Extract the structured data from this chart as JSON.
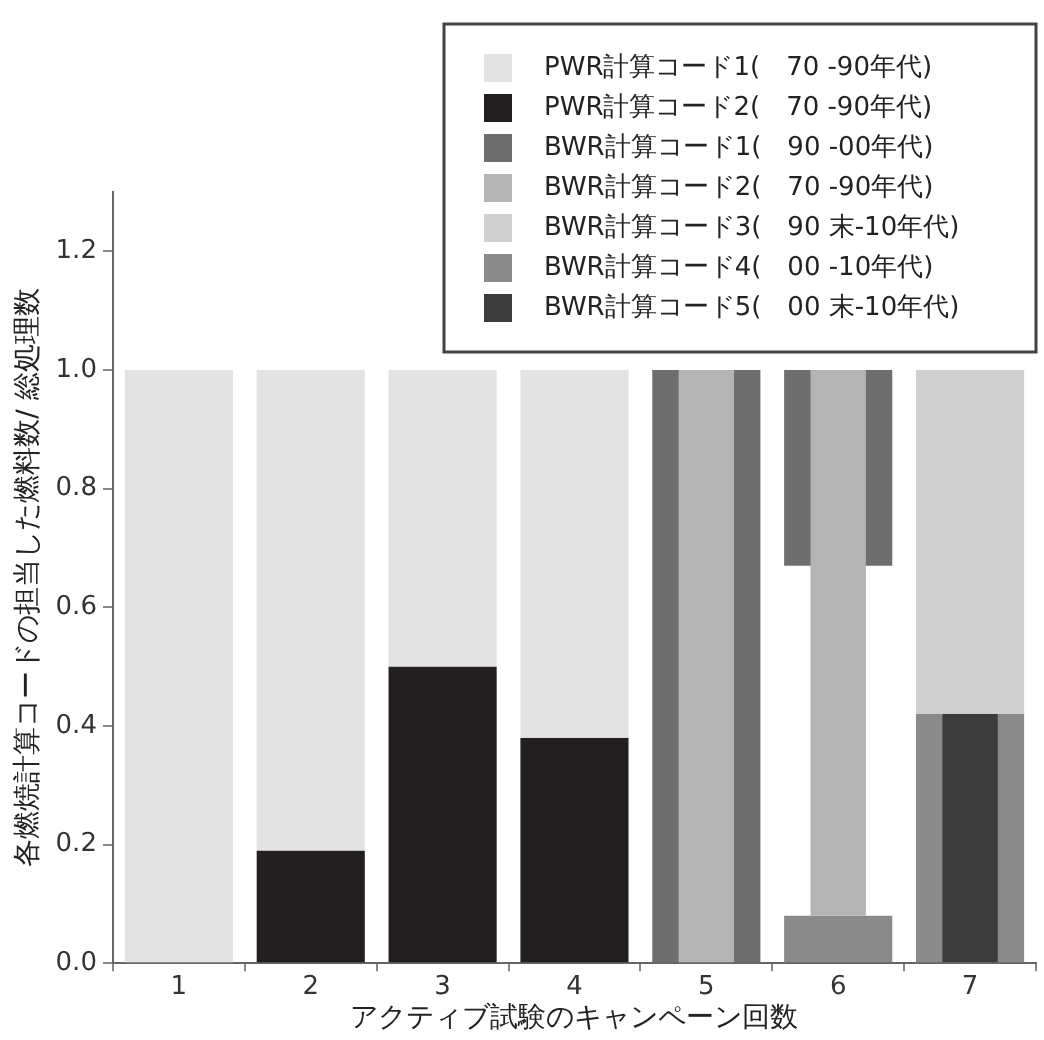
{
  "chart_data": {
    "type": "bar",
    "xlabel": "アクティブ試験のキャンペーン回数",
    "ylabel": "各燃焼計算コードの担当した燃料数/ 総処理数",
    "categories": [
      "1",
      "2",
      "3",
      "4",
      "5",
      "6",
      "7"
    ],
    "ylim": [
      0,
      1.3
    ],
    "yticks": [
      {
        "value": 0,
        "label": "0.0"
      },
      {
        "value": 0.2,
        "label": "0.2"
      },
      {
        "value": 0.4,
        "label": "0.4"
      },
      {
        "value": 0.6,
        "label": "0.6"
      },
      {
        "value": 0.8,
        "label": "0.8"
      },
      {
        "value": 1,
        "label": "1.0"
      },
      {
        "value": 1.2,
        "label": "1.2"
      }
    ],
    "grid": false,
    "legend": "top right",
    "series": [
      {
        "name": "PWR計算コード1(　70 -90年代)",
        "color": "#e3e3e3",
        "base": [
          0,
          0.19,
          0.5,
          0.38,
          null,
          null,
          null
        ],
        "values": [
          1,
          0.81,
          0.5,
          0.62,
          null,
          null,
          null
        ]
      },
      {
        "name": "PWR計算コード2(　70 -90年代)",
        "color": "#231f20",
        "base": [
          null,
          0,
          0,
          0,
          null,
          null,
          null
        ],
        "values": [
          null,
          0.19,
          0.5,
          0.38,
          null,
          null,
          null
        ]
      },
      {
        "name": "BWR計算コード1(　90 -00年代)",
        "color": "#6e6e6e",
        "base": [
          null,
          null,
          null,
          null,
          0,
          0.67,
          null
        ],
        "values": [
          null,
          null,
          null,
          null,
          1,
          0.33,
          null
        ]
      },
      {
        "name": "BWR計算コード2(　70 -90年代)",
        "color": "#b4b4b4",
        "base": [
          null,
          null,
          null,
          null,
          0,
          0.08,
          null
        ],
        "values": [
          null,
          null,
          null,
          null,
          1,
          0.92,
          null
        ]
      },
      {
        "name": "BWR計算コード3(　90 末-10年代)",
        "color": "#cfcfcf",
        "base": [
          null,
          null,
          null,
          null,
          null,
          null,
          0.42
        ],
        "values": [
          null,
          null,
          null,
          null,
          null,
          null,
          0.58
        ]
      },
      {
        "name": "BWR計算コード4(　00 -10年代)",
        "color": "#8a8a8a",
        "base": [
          null,
          null,
          null,
          null,
          null,
          0,
          0
        ],
        "values": [
          null,
          null,
          null,
          null,
          null,
          0.08,
          0.42
        ]
      },
      {
        "name": "BWR計算コード5(　00 末-10年代)",
        "color": "#3c3c3c",
        "base": [
          null,
          null,
          null,
          null,
          null,
          null,
          0
        ],
        "values": [
          null,
          null,
          null,
          null,
          null,
          null,
          0.42
        ]
      }
    ]
  }
}
